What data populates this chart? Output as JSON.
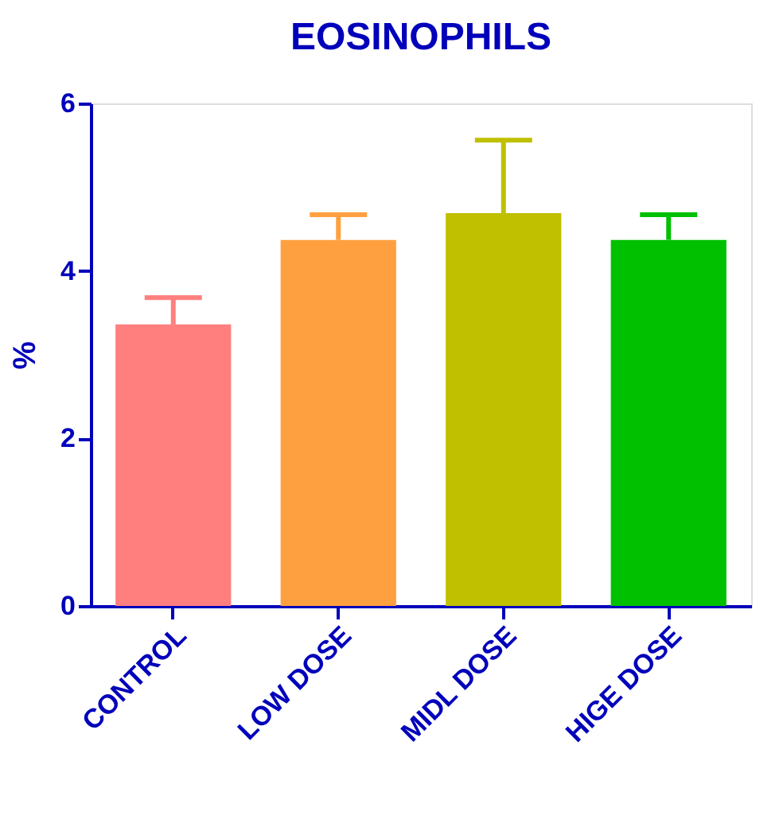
{
  "chart_data": {
    "type": "bar",
    "title": "EOSINOPHILS",
    "ylabel": "%",
    "categories": [
      "CONTROL",
      "LOW DOSE",
      "MIDL DOSE",
      "HIGE DOSE"
    ],
    "values": [
      3.36,
      4.37,
      4.69,
      4.37
    ],
    "colors": [
      "#ff7f7f",
      "#ffa040",
      "#c0c000",
      "#00c000"
    ],
    "errors": [
      [
        3.36,
        3.68
      ],
      [
        4.37,
        4.67
      ],
      [
        4.69,
        5.56
      ],
      [
        4.37,
        4.67
      ]
    ],
    "ylim": [
      0,
      6
    ],
    "yticks": [
      0,
      2,
      4,
      6
    ],
    "grid": false,
    "legend": false
  }
}
